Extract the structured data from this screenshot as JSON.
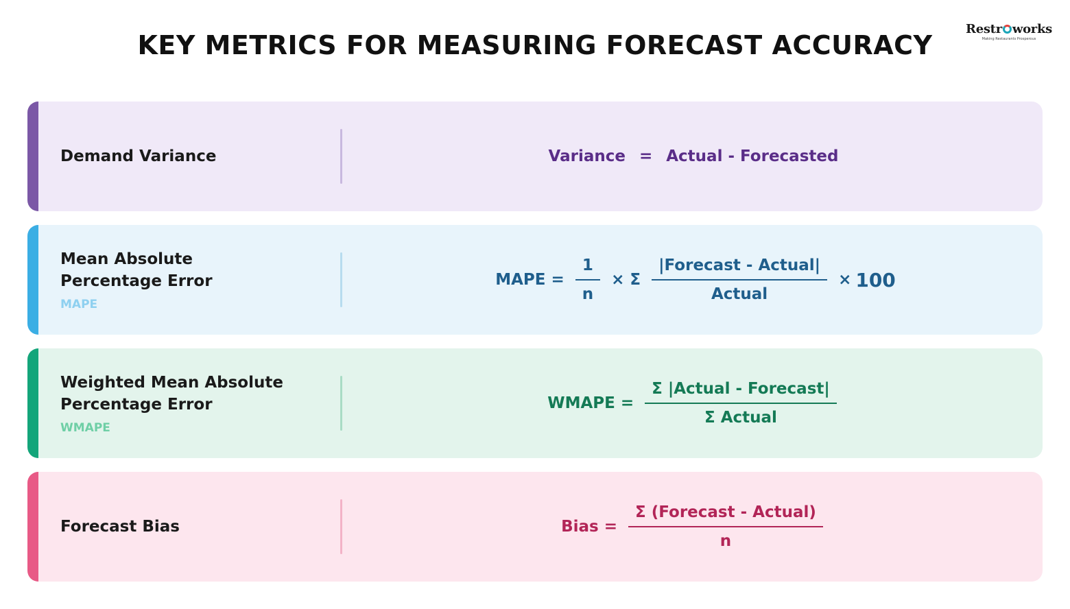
{
  "title": "KEY METRICS FOR MEASURING FORECAST ACCURACY",
  "logo": {
    "word_start": "Restr",
    "word_end": "works",
    "tagline": "Making Restaurants Prosperous"
  },
  "metrics": [
    {
      "name": "Demand Variance",
      "abbr": "",
      "formula": {
        "lhs": "Variance",
        "equals": "=",
        "rhs": "Actual - Forecasted"
      }
    },
    {
      "name_line1": "Mean Absolute",
      "name_line2": "Percentage Error",
      "abbr": "MAPE",
      "formula": {
        "lhs": "MAPE =",
        "frac1_num": "1",
        "frac1_den": "n",
        "op": "× Σ",
        "frac2_num": "|Forecast - Actual|",
        "frac2_den": "Actual",
        "tail_op": "×",
        "tail_val": "100"
      }
    },
    {
      "name_line1": "Weighted Mean Absolute",
      "name_line2": "Percentage Error",
      "abbr": "WMAPE",
      "formula": {
        "lhs": "WMAPE =",
        "num": "Σ |Actual - Forecast|",
        "den": "Σ Actual"
      }
    },
    {
      "name": "Forecast Bias",
      "abbr": "",
      "formula": {
        "lhs": "Bias =",
        "num": "Σ (Forecast - Actual)",
        "den": "n"
      }
    }
  ]
}
